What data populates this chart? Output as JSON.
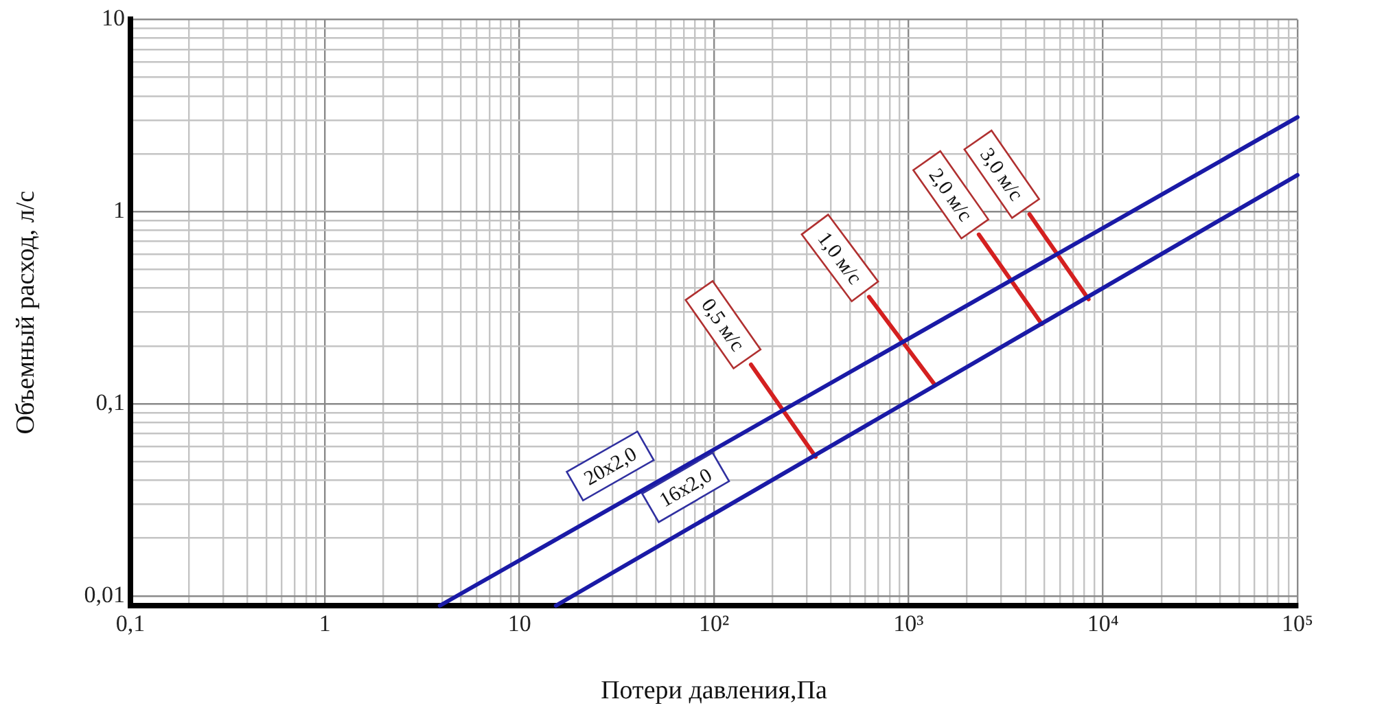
{
  "chart_data": {
    "type": "line",
    "xlabel": "Потери давления,Па",
    "ylabel": "Объемный расход, л/с",
    "log": "xy",
    "grid": true,
    "marker": "none",
    "line_style": "solid",
    "xlim": [
      0.1,
      100000
    ],
    "ylim": [
      0.0089,
      10
    ],
    "xticks": [
      {
        "value": 0.1,
        "label": "0,1"
      },
      {
        "value": 0.2,
        "label": null
      },
      {
        "value": 0.3,
        "label": null
      },
      {
        "value": 0.4,
        "label": null
      },
      {
        "value": 0.5,
        "label": null
      },
      {
        "value": 0.6,
        "label": null
      },
      {
        "value": 0.7,
        "label": null
      },
      {
        "value": 0.8,
        "label": null
      },
      {
        "value": 0.9,
        "label": null
      },
      1,
      {
        "value": 2,
        "label": null
      },
      {
        "value": 3,
        "label": null
      },
      {
        "value": 4,
        "label": null
      },
      {
        "value": 5,
        "label": null
      },
      {
        "value": 6,
        "label": null
      },
      {
        "value": 7,
        "label": null
      },
      {
        "value": 8,
        "label": null
      },
      {
        "value": 9,
        "label": null
      },
      10,
      {
        "value": 20,
        "label": null
      },
      {
        "value": 30,
        "label": null
      },
      {
        "value": 40,
        "label": null
      },
      {
        "value": 50,
        "label": null
      },
      {
        "value": 60,
        "label": null
      },
      {
        "value": 70,
        "label": null
      },
      {
        "value": 80,
        "label": null
      },
      {
        "value": 90,
        "label": null
      },
      {
        "value": 100,
        "label": "10²"
      },
      {
        "value": 200,
        "label": null
      },
      {
        "value": 300,
        "label": null
      },
      {
        "value": 400,
        "label": null
      },
      {
        "value": 500,
        "label": null
      },
      {
        "value": 600,
        "label": null
      },
      {
        "value": 700,
        "label": null
      },
      {
        "value": 800,
        "label": null
      },
      {
        "value": 900,
        "label": null
      },
      {
        "value": 1000,
        "label": "10³"
      },
      {
        "value": 2000,
        "label": null
      },
      {
        "value": 3000,
        "label": null
      },
      {
        "value": 4000,
        "label": null
      },
      {
        "value": 5000,
        "label": null
      },
      {
        "value": 6000,
        "label": null
      },
      {
        "value": 7000,
        "label": null
      },
      {
        "value": 8000,
        "label": null
      },
      {
        "value": 9000,
        "label": null
      },
      {
        "value": 10000,
        "label": "10⁴"
      },
      {
        "value": 20000,
        "label": null
      },
      {
        "value": 30000,
        "label": null
      },
      {
        "value": 40000,
        "label": null
      },
      {
        "value": 50000,
        "label": null
      },
      {
        "value": 60000,
        "label": null
      },
      {
        "value": 70000,
        "label": null
      },
      {
        "value": 80000,
        "label": null
      },
      {
        "value": 90000,
        "label": null
      },
      {
        "value": 100000,
        "label": "10⁵"
      }
    ],
    "yticks": [
      {
        "value": 0.01,
        "label": "0,01"
      },
      {
        "value": 0.02,
        "label": null
      },
      {
        "value": 0.03,
        "label": null
      },
      {
        "value": 0.04,
        "label": null
      },
      {
        "value": 0.05,
        "label": null
      },
      {
        "value": 0.06,
        "label": null
      },
      {
        "value": 0.07,
        "label": null
      },
      {
        "value": 0.08,
        "label": null
      },
      {
        "value": 0.09,
        "label": null
      },
      {
        "value": 0.1,
        "label": "0,1"
      },
      {
        "value": 0.2,
        "label": null
      },
      {
        "value": 0.3,
        "label": null
      },
      {
        "value": 0.4,
        "label": null
      },
      {
        "value": 0.5,
        "label": null
      },
      {
        "value": 0.6,
        "label": null
      },
      {
        "value": 0.7,
        "label": null
      },
      {
        "value": 0.8,
        "label": null
      },
      {
        "value": 0.9,
        "label": null
      },
      1,
      {
        "value": 2,
        "label": null
      },
      {
        "value": 3,
        "label": null
      },
      {
        "value": 4,
        "label": null
      },
      {
        "value": 5,
        "label": null
      },
      {
        "value": 6,
        "label": null
      },
      {
        "value": 7,
        "label": null
      },
      {
        "value": 8,
        "label": null
      },
      {
        "value": 9,
        "label": null
      },
      10
    ],
    "series": [
      {
        "name": "20x2,0",
        "color": "#1a1aa6",
        "x": [
          3.9,
          100000
        ],
        "values": [
          0.0089,
          3.1
        ]
      },
      {
        "name": "16x2,0",
        "color": "#1a1aa6",
        "x": [
          15.4,
          100000
        ],
        "values": [
          0.0089,
          1.55
        ]
      },
      {
        "name": "0,5 м/с",
        "color": "#d42020",
        "x": [
          155,
          333
        ],
        "values": [
          0.16,
          0.053
        ]
      },
      {
        "name": "1,0 м/с",
        "color": "#d42020",
        "x": [
          627,
          1370
        ],
        "values": [
          0.36,
          0.125
        ]
      },
      {
        "name": "2,0 м/с",
        "color": "#d42020",
        "x": [
          2300,
          4850
        ],
        "values": [
          0.76,
          0.26
        ]
      },
      {
        "name": "3,0 м/с",
        "color": "#d42020",
        "x": [
          4190,
          8430
        ],
        "values": [
          0.97,
          0.35
        ]
      }
    ]
  }
}
